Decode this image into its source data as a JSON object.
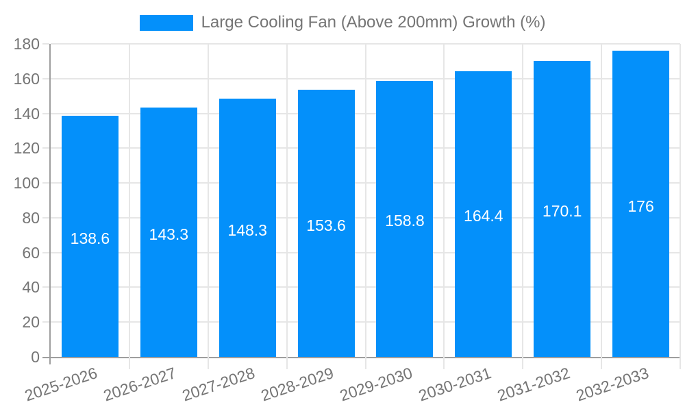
{
  "legend": {
    "label": "Large Cooling Fan (Above 200mm) Growth (%)"
  },
  "chart_data": {
    "type": "bar",
    "title": "",
    "xlabel": "",
    "ylabel": "",
    "categories": [
      "2025-2026",
      "2026-2027",
      "2027-2028",
      "2028-2029",
      "2029-2030",
      "2030-2031",
      "2031-2032",
      "2032-2033"
    ],
    "series": [
      {
        "name": "Large Cooling Fan (Above 200mm) Growth (%)",
        "values": [
          138.6,
          143.3,
          148.3,
          153.6,
          158.8,
          164.4,
          170.1,
          176
        ]
      }
    ],
    "value_labels": [
      "138.6",
      "143.3",
      "148.3",
      "153.6",
      "158.8",
      "164.4",
      "170.1",
      "176"
    ],
    "ylim": [
      0,
      180
    ],
    "yticks": [
      0,
      20,
      40,
      60,
      80,
      100,
      120,
      140,
      160,
      180
    ],
    "grid": true,
    "legend_position": "top",
    "colors": {
      "bar": "#0490fa",
      "value_label": "#ffffff",
      "axis_text": "#757575",
      "gridline": "#e6e6e6",
      "axis_line": "#9e9e9e",
      "background": "#ffffff"
    }
  }
}
